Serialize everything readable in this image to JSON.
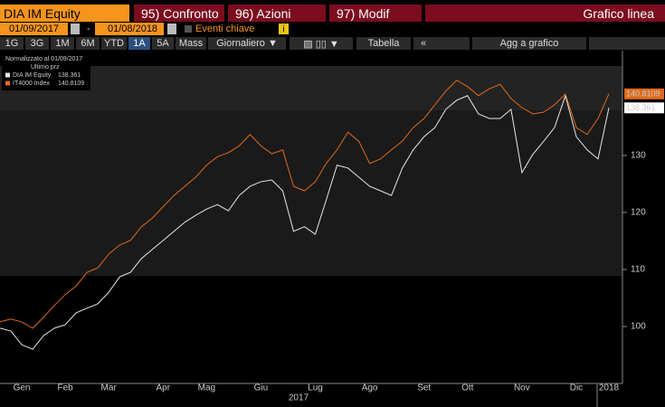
{
  "toolbar": {
    "security": "DIA IM Equity",
    "buttons": [
      "95) Confronto",
      "96) Azioni",
      "97) Modif"
    ],
    "view": "Grafico linea",
    "start_date": "01/09/2017",
    "date_separator": "-",
    "end_date": "01/08/2018",
    "events": "Eventi chiave",
    "periods": [
      "1G",
      "3G",
      "1M",
      "6M",
      "YTD",
      "1A",
      "5A",
      "Mass"
    ],
    "frequency": "Giornaliero ▼",
    "table": "Tabella",
    "add": "Agg a grafico"
  },
  "chart_data": {
    "type": "line",
    "title": "Normalizzato al 01/09/2017",
    "subtitle": "Ultimo prz",
    "x_label": "2017",
    "categories": [
      null,
      null,
      "Gen",
      null,
      null,
      null,
      "Feb",
      null,
      null,
      null,
      "Mar",
      null,
      null,
      null,
      null,
      "Apr",
      null,
      null,
      null,
      "Mag",
      null,
      null,
      null,
      null,
      "Giu",
      null,
      null,
      null,
      null,
      "Lug",
      null,
      null,
      null,
      null,
      "Ago",
      null,
      null,
      null,
      null,
      "Set",
      null,
      null,
      null,
      "Ott",
      null,
      null,
      null,
      null,
      "Nov",
      null,
      null,
      null,
      null,
      "Dic",
      null,
      null,
      "2018"
    ],
    "series": [
      {
        "name": "DIA IM Equity",
        "color": "#e8e8e8",
        "values": [
          99.7,
          99.2,
          96.8,
          96.0,
          98.4,
          99.7,
          100.3,
          102.4,
          103.2,
          104.0,
          106.0,
          108.7,
          109.5,
          111.9,
          113.5,
          115.1,
          116.7,
          118.3,
          119.5,
          120.6,
          121.4,
          120.3,
          123.0,
          124.6,
          125.4,
          125.7,
          123.8,
          116.7,
          117.5,
          116.2,
          122.2,
          128.3,
          127.8,
          126.2,
          124.6,
          123.8,
          123.0,
          127.8,
          131.0,
          133.3,
          134.9,
          138.1,
          139.7,
          140.5,
          137.3,
          136.5,
          136.5,
          138.1,
          127.0,
          130.2,
          132.5,
          134.9,
          140.5,
          133.3,
          131.0,
          129.4,
          138.361
        ]
      },
      {
        "name": "IT4000 Index",
        "color": "#e06a1b",
        "values": [
          100.8,
          101.3,
          100.8,
          99.7,
          101.6,
          103.7,
          105.6,
          107.1,
          109.5,
          110.3,
          112.7,
          114.3,
          115.1,
          117.5,
          119.0,
          121.0,
          123.0,
          124.6,
          126.2,
          128.3,
          129.8,
          130.5,
          131.7,
          133.7,
          131.7,
          130.3,
          131.0,
          124.6,
          123.8,
          125.4,
          128.6,
          131.0,
          134.1,
          132.5,
          128.6,
          129.4,
          131.0,
          132.5,
          134.9,
          136.5,
          138.9,
          141.3,
          143.2,
          142.1,
          140.5,
          141.7,
          142.5,
          140.0,
          138.4,
          137.3,
          137.6,
          138.9,
          140.8,
          134.9,
          133.7,
          136.5,
          140.8109
        ]
      }
    ],
    "ylim": [
      90,
      148.4
    ],
    "yticks": [
      100,
      110,
      120,
      130
    ],
    "grid": false
  }
}
